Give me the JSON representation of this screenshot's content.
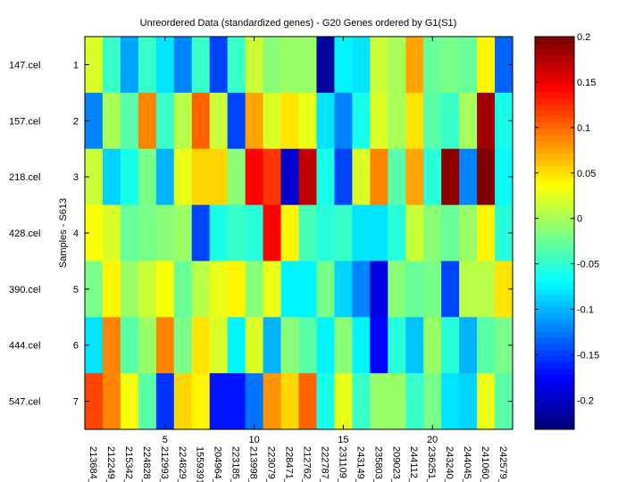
{
  "chart_data": {
    "type": "heatmap",
    "title": "Unreordered Data (standardized genes) - G20 Genes ordered by G1(S1)",
    "ylabel": "Samples - S613",
    "xlabel": "",
    "x_tick_numbers": [
      "5",
      "10",
      "15",
      "20"
    ],
    "x_tick_positions": [
      5,
      10,
      15,
      20
    ],
    "genes": [
      "213684_",
      "212249_",
      "215342_",
      "224828_",
      "212993_",
      "224829_",
      "1559391",
      "204964_",
      "223185_",
      "213998_",
      "223079_",
      "228471_",
      "212762_",
      "222787_",
      "231109_",
      "243149_",
      "235803_",
      "209023_",
      "244112_",
      "236251_",
      "243240_",
      "244045_",
      "241060_",
      "242579_"
    ],
    "samples": [
      "147.cel",
      "157.cel",
      "218.cel",
      "428.cel",
      "390.cel",
      "444.cel",
      "547.cel"
    ],
    "row_numbers": [
      "1",
      "2",
      "3",
      "4",
      "5",
      "6",
      "7"
    ],
    "values": [
      [
        0.02,
        -0.048,
        -0.11,
        -0.048,
        -0.08,
        -0.124,
        -0.045,
        -0.146,
        -0.045,
        0.015,
        -0.015,
        -0.005,
        -0.005,
        -0.215,
        -0.07,
        -0.078,
        0.013,
        -0.002,
        0.072,
        -0.027,
        -0.02,
        -0.025,
        0.038,
        -0.135
      ],
      [
        -0.124,
        0.0,
        -0.035,
        0.09,
        -0.045,
        0.01,
        0.105,
        0.015,
        -0.15,
        0.077,
        0.022,
        0.048,
        0.03,
        -0.08,
        -0.12,
        -0.06,
        0.022,
        0.0,
        0.045,
        -0.035,
        -0.043,
        0.0,
        0.183,
        -0.06
      ],
      [
        0.015,
        -0.09,
        -0.06,
        -0.02,
        -0.1,
        0.03,
        0.058,
        0.055,
        -0.015,
        0.14,
        0.12,
        -0.195,
        0.172,
        -0.058,
        -0.146,
        0.018,
        0.09,
        -0.035,
        0.075,
        -0.05,
        0.193,
        -0.124,
        0.2,
        -0.068
      ],
      [
        0.033,
        0.02,
        -0.025,
        -0.018,
        -0.012,
        -0.005,
        -0.146,
        -0.058,
        -0.048,
        -0.05,
        0.146,
        0.038,
        -0.04,
        -0.055,
        -0.043,
        -0.082,
        -0.082,
        -0.05,
        0.013,
        -0.01,
        -0.025,
        -0.005,
        0.038,
        -0.05
      ],
      [
        -0.022,
        0.038,
        -0.005,
        0.015,
        0.033,
        -0.028,
        0.01,
        0.027,
        0.038,
        -0.01,
        0.025,
        -0.07,
        -0.075,
        -0.018,
        -0.085,
        -0.12,
        -0.185,
        -0.01,
        -0.028,
        -0.02,
        -0.15,
        0.005,
        0.005,
        0.045
      ],
      [
        -0.078,
        0.09,
        -0.03,
        -0.005,
        0.09,
        -0.018,
        0.045,
        0.022,
        -0.07,
        0.018,
        -0.103,
        -0.012,
        -0.035,
        -0.072,
        -0.01,
        -0.072,
        -0.178,
        -0.055,
        -0.092,
        -0.005,
        -0.055,
        -0.098,
        -0.03,
        -0.02
      ],
      [
        0.113,
        0.087,
        0.033,
        -0.03,
        -0.155,
        0.055,
        0.038,
        -0.168,
        -0.168,
        -0.127,
        0.08,
        0.055,
        0.105,
        -0.058,
        0.025,
        -0.045,
        -0.005,
        -0.005,
        -0.045,
        -0.018,
        -0.082,
        -0.085,
        0.027,
        -0.03
      ]
    ],
    "colorbar": {
      "colormap": "jet",
      "range": [
        -0.232,
        0.2
      ],
      "ticks": [
        0.2,
        0.15,
        0.1,
        0.05,
        0,
        -0.05,
        -0.1,
        -0.15,
        -0.2
      ],
      "tick_labels": [
        "0.2",
        "0.15",
        "0.1",
        "0.05",
        "0",
        "-0.05",
        "-0.1",
        "-0.15",
        "-0.2"
      ]
    }
  }
}
